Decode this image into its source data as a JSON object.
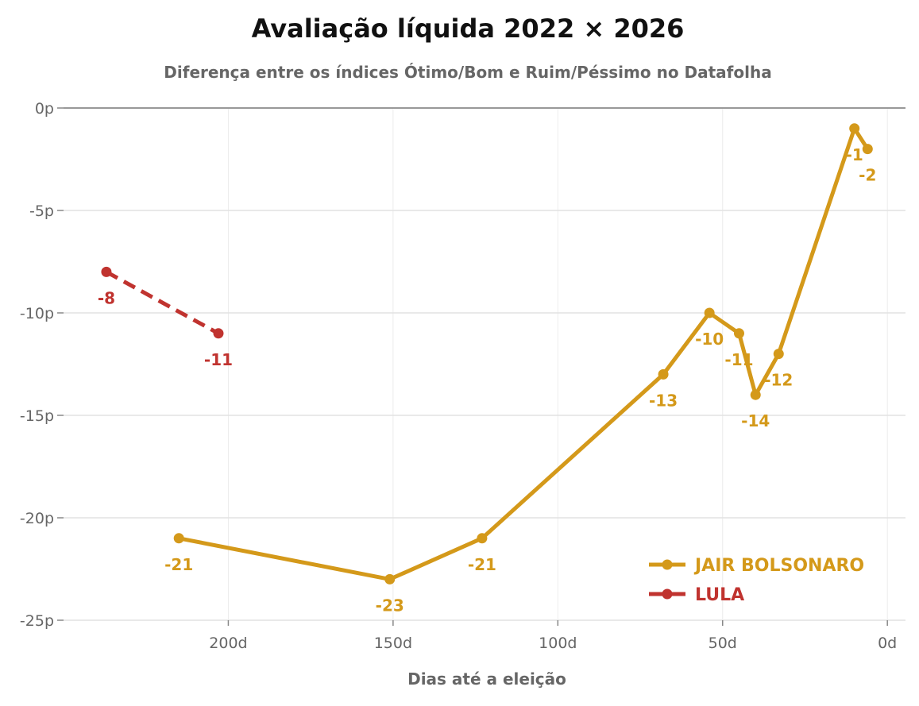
{
  "chart_data": {
    "type": "line",
    "title": "Avaliação líquida 2022 × 2026",
    "subtitle": "Diferença entre os índices Ótimo/Bom e Ruim/Péssimo no Datafolha",
    "xlabel": "Dias até a eleição",
    "ylabel": "",
    "xlim": [
      250,
      -5.5
    ],
    "ylim": [
      -25,
      0
    ],
    "x_ticks": [
      200,
      150,
      100,
      50,
      0
    ],
    "x_tick_labels": [
      "200d",
      "150d",
      "100d",
      "50d",
      "0d"
    ],
    "y_ticks": [
      0,
      -5,
      -10,
      -15,
      -20,
      -25
    ],
    "y_tick_labels": [
      "0p",
      "-5p",
      "-10p",
      "-15p",
      "-20p",
      "-25p"
    ],
    "grid": true,
    "legend_position": "bottom-right",
    "series": [
      {
        "name": "JAIR BOLSONARO",
        "color": "#D4991A",
        "dash": false,
        "x": [
          215,
          151,
          123,
          68,
          54,
          45,
          40,
          33,
          10,
          6
        ],
        "values": [
          -21,
          -23,
          -21,
          -13,
          -10,
          -11,
          -14,
          -12,
          -1,
          -2
        ],
        "labels": [
          "-21",
          "-23",
          "-21",
          "-13",
          "-10",
          "-11",
          "-14",
          "-12",
          "-1",
          "-2"
        ]
      },
      {
        "name": "LULA",
        "color": "#C0332F",
        "dash": true,
        "x": [
          237,
          203
        ],
        "values": [
          -8,
          -11
        ],
        "labels": [
          "-8",
          "-11"
        ]
      }
    ]
  }
}
